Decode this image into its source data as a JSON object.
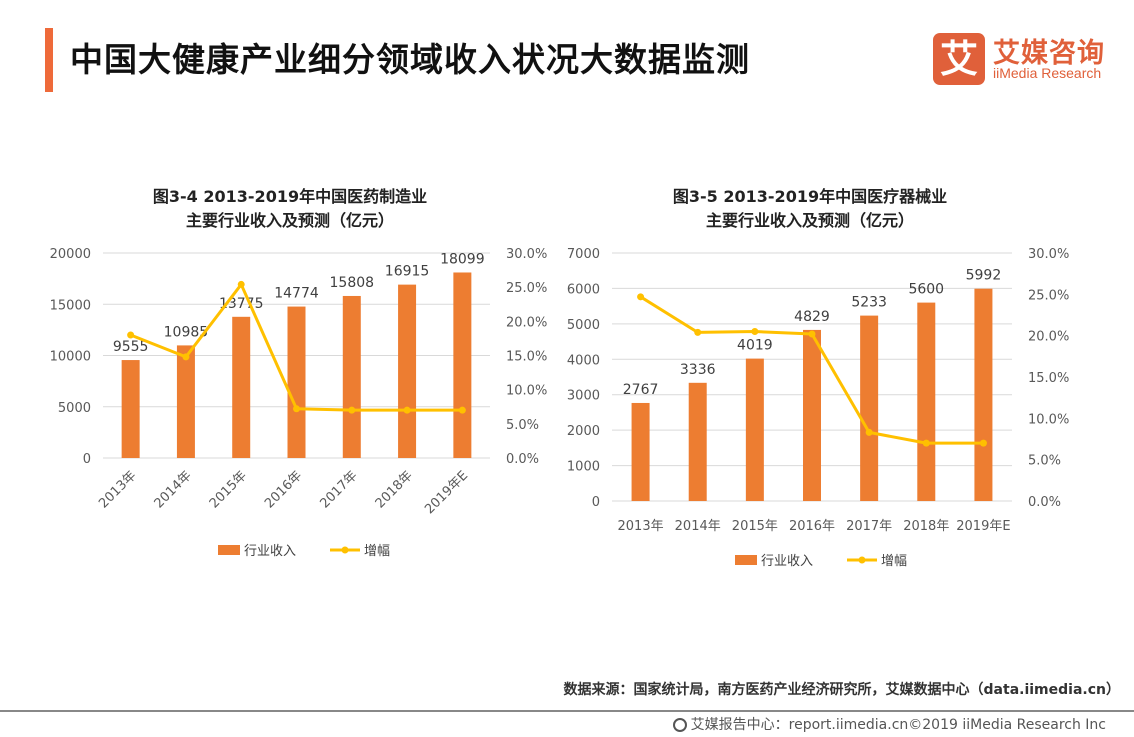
{
  "header": {
    "title": "中国大健康产业细分领域收入状况大数据监测",
    "logo_cn": "艾媒咨询",
    "logo_en": "iiMedia Research",
    "logo_mark": "艾",
    "accent_color": "#ee6a3a"
  },
  "chart_data": [
    {
      "type": "bar+line",
      "title_line1": "图3-4 2013-2019年中国医药制造业",
      "title_line2": "主要行业收入及预测（亿元）",
      "categories": [
        "2013年",
        "2014年",
        "2015年",
        "2016年",
        "2017年",
        "2018年",
        "2019年E"
      ],
      "series": [
        {
          "name": "行业收入",
          "type": "bar",
          "axis": "left",
          "color": "#ed7d31",
          "values": [
            9555,
            10985,
            13775,
            14774,
            15808,
            16915,
            18099
          ]
        },
        {
          "name": "增幅",
          "type": "line",
          "axis": "right",
          "color": "#ffc000",
          "values": [
            18.0,
            14.8,
            25.4,
            7.2,
            7.0,
            7.0,
            7.0
          ]
        }
      ],
      "y_left": {
        "range": [
          0,
          20000
        ],
        "ticks": [
          "0",
          "5000",
          "10000",
          "15000",
          "20000"
        ]
      },
      "y_right": {
        "range": [
          0,
          30
        ],
        "ticks": [
          "0.0%",
          "5.0%",
          "10.0%",
          "15.0%",
          "20.0%",
          "25.0%",
          "30.0%"
        ]
      },
      "x_labels_rotated": true,
      "grid": true,
      "legend": "bottom"
    },
    {
      "type": "bar+line",
      "title_line1": "图3-5 2013-2019年中国医疗器械业",
      "title_line2": "主要行业收入及预测（亿元）",
      "categories": [
        "2013年",
        "2014年",
        "2015年",
        "2016年",
        "2017年",
        "2018年",
        "2019年E"
      ],
      "series": [
        {
          "name": "行业收入",
          "type": "bar",
          "axis": "left",
          "color": "#ed7d31",
          "values": [
            2767,
            3336,
            4019,
            4829,
            5233,
            5600,
            5992
          ]
        },
        {
          "name": "增幅",
          "type": "line",
          "axis": "right",
          "color": "#ffc000",
          "values": [
            24.7,
            20.4,
            20.5,
            20.2,
            8.3,
            7.0,
            7.0
          ]
        }
      ],
      "y_left": {
        "range": [
          0,
          7000
        ],
        "ticks": [
          "0",
          "1000",
          "2000",
          "3000",
          "4000",
          "5000",
          "6000",
          "7000"
        ]
      },
      "y_right": {
        "range": [
          0,
          30
        ],
        "ticks": [
          "0.0%",
          "5.0%",
          "10.0%",
          "15.0%",
          "20.0%",
          "25.0%",
          "30.0%"
        ]
      },
      "x_labels_rotated": false,
      "grid": true,
      "legend": "bottom"
    }
  ],
  "footer": {
    "source": "数据来源：国家统计局，南方医药产业经济研究所，艾媒数据中心（data.iimedia.cn）",
    "copyright": "艾媒报告中心：report.iimedia.cn©2019 iiMedia Research Inc"
  }
}
